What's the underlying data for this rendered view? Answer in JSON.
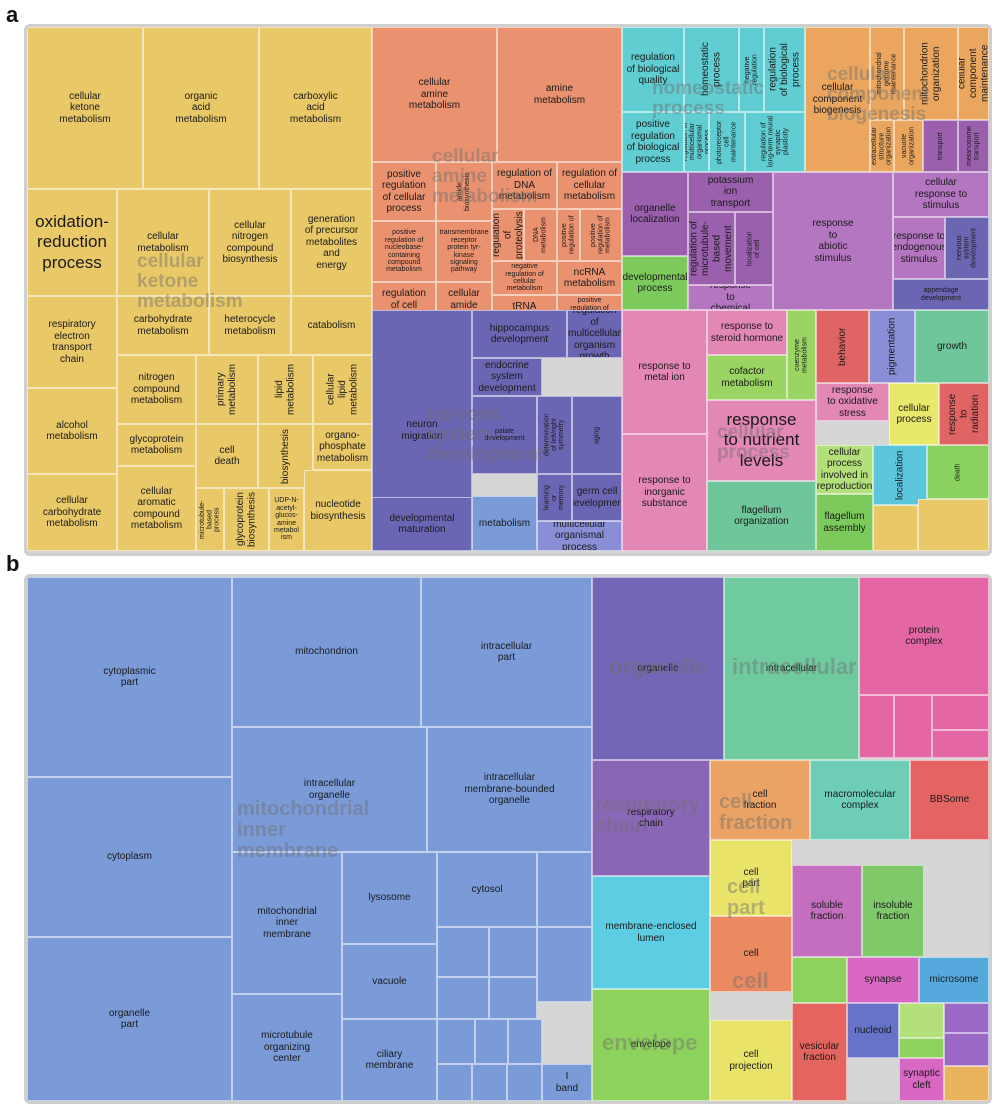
{
  "panels": [
    "a",
    "b"
  ],
  "chart_data": [
    {
      "type": "treemap",
      "panel": "a",
      "group_labels": [
        "cellular ketone metabolism",
        "cellular amine metabolism",
        "homeostatic process",
        "cellular component biogenesis",
        "nervous system development",
        "cellular process"
      ],
      "cells": [
        {
          "label": "cellular\nketone\nmetabolism",
          "color": "#e9c868"
        },
        {
          "label": "organic\nacid\nmetabolism",
          "color": "#e9c868"
        },
        {
          "label": "carboxylic\nacid\nmetabolism",
          "color": "#e9c868"
        },
        {
          "label": "oxidation-\nreduction\nprocess",
          "color": "#e9c868"
        },
        {
          "label": "cellular\nmetabolism",
          "color": "#e9c868"
        },
        {
          "label": "cellular\nnitrogen\ncompound\nbiosynthesis",
          "color": "#e9c868"
        },
        {
          "label": "generation\nof precursor\nmetabolites\nand\nenergy",
          "color": "#e9c868"
        },
        {
          "label": "respiratory\nelectron\ntransport\nchain",
          "color": "#e9c868"
        },
        {
          "label": "carbohydrate\nmetabolism",
          "color": "#e9c868"
        },
        {
          "label": "heterocycle\nmetabolism",
          "color": "#e9c868"
        },
        {
          "label": "catabolism",
          "color": "#e9c868"
        },
        {
          "label": "nitrogen\ncompound\nmetabolism",
          "color": "#e9c868"
        },
        {
          "label": "primary\nmetabolism",
          "color": "#e9c868"
        },
        {
          "label": "lipid\nmetabolism",
          "color": "#e9c868"
        },
        {
          "label": "cellular\nlipid\nmetabolism",
          "color": "#e9c868"
        },
        {
          "label": "alcohol\nmetabolism",
          "color": "#e9c868"
        },
        {
          "label": "glycoprotein\nmetabolism",
          "color": "#e9c868"
        },
        {
          "label": "cell\ndeath",
          "color": "#e9c868"
        },
        {
          "label": "biosynthesis",
          "color": "#e9c868"
        },
        {
          "label": "organo-\nphosphate\nmetabolism",
          "color": "#e9c868"
        },
        {
          "label": "cellular\ncarbohydrate\nmetabolism",
          "color": "#e9c868"
        },
        {
          "label": "cellular\naromatic\ncompound\nmetabolism",
          "color": "#e9c868"
        },
        {
          "label": "microtubule-\nbased\nprocess",
          "color": "#e9c868"
        },
        {
          "label": "glycoprotein\nbiosynthesis",
          "color": "#e9c868"
        },
        {
          "label": "UDP-N-\nacetyl-\nglucos-\namine\nmetabol\nism",
          "color": "#e9c868"
        },
        {
          "label": "nucleotide\nbiosynthesis",
          "color": "#e9c868"
        },
        {
          "label": "cellular\namine\nmetabolism",
          "color": "#ea9270"
        },
        {
          "label": "amine\nmetabolism",
          "color": "#ea9270"
        },
        {
          "label": "positive\nregulation\nof cellular\nprocess",
          "color": "#ea9270"
        },
        {
          "label": "amide\nbiosynthesis",
          "color": "#ea9270"
        },
        {
          "label": "regulation of\nDNA\nmetabolism",
          "color": "#ea9270"
        },
        {
          "label": "regulation of\ncellular\nmetabolism",
          "color": "#ea9270"
        },
        {
          "label": "positive\nregulation of\nnucleobase-\ncontaining\ncompound\nmetabolism",
          "color": "#ea9270"
        },
        {
          "label": "transmembrane\nreceptor\nprotein tyr-\nkinase\nsignaling\npathway",
          "color": "#ea9270"
        },
        {
          "label": "regulation\nof\nproteolysis",
          "color": "#ea9270"
        },
        {
          "label": "DNA\nmetabolism",
          "color": "#ea9270"
        },
        {
          "label": "positive\nregulation of",
          "color": "#ea9270"
        },
        {
          "label": "positive\nregulation of\nmetabolism",
          "color": "#ea9270"
        },
        {
          "label": "negative\nregulation of\ncellular\nmetabolism",
          "color": "#ea9270"
        },
        {
          "label": "ncRNA\nmetabolism",
          "color": "#ea9270"
        },
        {
          "label": "regulation\nof cell\nproliferation",
          "color": "#ea9270"
        },
        {
          "label": "cellular\namide\nmetabolism",
          "color": "#ea9270"
        },
        {
          "label": "tRNA\nmetabolism",
          "color": "#ea9270"
        },
        {
          "label": "positive\nregulation of\nmonooxygenase\nactivity",
          "color": "#ea9270"
        },
        {
          "label": "regulation\nof biological\nquality",
          "color": "#5fcdd2"
        },
        {
          "label": "homeostatic\nprocess",
          "color": "#5fcdd2"
        },
        {
          "label": "negative\nregulation",
          "color": "#5fcdd2"
        },
        {
          "label": "regulation\nof biological\nprocess",
          "color": "#5fcdd2"
        },
        {
          "label": "positive\nregulation\nof biological\nprocess",
          "color": "#5fcdd2"
        },
        {
          "label": "regulation of\nmulticellular\norganismal\nprocess",
          "color": "#5fcdd2"
        },
        {
          "label": "photoreceptor\ncell\nmaintenance",
          "color": "#5fcdd2"
        },
        {
          "label": "regulation of\nlong-term neural\nsynaptic plasticity",
          "color": "#5fcdd2"
        },
        {
          "label": "cellular\ncomponent\nbiogenesis",
          "color": "#eaa65e"
        },
        {
          "label": "mitochondrial\ngenome\nmaintenance",
          "color": "#eaa65e"
        },
        {
          "label": "mitochondrion\norganization",
          "color": "#eaa65e"
        },
        {
          "label": "cellular\ncomponent\nmaintenance",
          "color": "#eaa65e"
        },
        {
          "label": "extracellular\nstructure\norganization",
          "color": "#eaa65e"
        },
        {
          "label": "vacuole\norganization",
          "color": "#eaa65e"
        },
        {
          "label": "transport",
          "color": "#9a60ae"
        },
        {
          "label": "melanosome\ntransport",
          "color": "#9a60ae"
        },
        {
          "label": "organelle\nlocalization",
          "color": "#9a60ae"
        },
        {
          "label": "potassium\nion\ntransport",
          "color": "#9a60ae"
        },
        {
          "label": "regulation of\nmicrotubule-\nbased\nmovement",
          "color": "#9a60ae"
        },
        {
          "label": "localization\nof cell",
          "color": "#9a60ae"
        },
        {
          "label": "developmental\nprocess",
          "color": "#7dca5c"
        },
        {
          "label": "response\nto\nchemical",
          "color": "#b476c1"
        },
        {
          "label": "response\nto\nabiotic\nstimulus",
          "color": "#b476c1"
        },
        {
          "label": "cellular\nresponse to\nstimulus",
          "color": "#b476c1"
        },
        {
          "label": "response to\nendogenous stimulus",
          "color": "#b476c1"
        },
        {
          "label": "nervous\nsystem\ndevelopment",
          "color": "#6b66b3"
        },
        {
          "label": "appendage\ndevelopment",
          "color": "#6b66b3"
        },
        {
          "label": "neuron\nmigration",
          "color": "#6b66b3"
        },
        {
          "label": "hippocampus\ndevelopment",
          "color": "#6b66b3"
        },
        {
          "label": "regulation of\nmulticellular\norganism\ngrowth",
          "color": "#6b66b3"
        },
        {
          "label": "endocrine\nsystem\ndevelopment",
          "color": "#6b66b3"
        },
        {
          "label": "palate\ndevelopment",
          "color": "#6b66b3"
        },
        {
          "label": "determination\nof left/right\nsymmetry",
          "color": "#6b66b3"
        },
        {
          "label": "aging",
          "color": "#6b66b3"
        },
        {
          "label": "learning\nor\nmemory",
          "color": "#6b66b3"
        },
        {
          "label": "germ cell\ndevelopment",
          "color": "#6b66b3"
        },
        {
          "label": "developmental\nmaturation",
          "color": "#6b66b3"
        },
        {
          "label": "metabolism",
          "color": "#7a9ad8"
        },
        {
          "label": "multicellular\norganismal\nprocess",
          "color": "#8a8ed6"
        },
        {
          "label": "response to\nmetal ion",
          "color": "#e387b5"
        },
        {
          "label": "response to\ninorganic\nsubstance",
          "color": "#e387b5"
        },
        {
          "label": "response to\nsteroid hormone",
          "color": "#e387b5"
        },
        {
          "label": "cofactor\nmetabolism",
          "color": "#9ad462"
        },
        {
          "label": "coenzyme\nmetabolism",
          "color": "#9ad462"
        },
        {
          "label": "behavior",
          "color": "#e06464"
        },
        {
          "label": "pigmentation",
          "color": "#8a8ed6"
        },
        {
          "label": "growth",
          "color": "#6fc69a"
        },
        {
          "label": "response\nto oxidative\nstress",
          "color": "#e387b5"
        },
        {
          "label": "cellular\nprocess",
          "color": "#e8e86a"
        },
        {
          "label": "response\nto\nradiation",
          "color": "#e06464"
        },
        {
          "label": "response\nto nutrient\nlevels",
          "color": "#e387b5"
        },
        {
          "label": "cellular\nprocess\ninvolved in\nreproduction",
          "color": "#b3e07a"
        },
        {
          "label": "localization",
          "color": "#5cc6df"
        },
        {
          "label": "death",
          "color": "#8ad160"
        },
        {
          "label": "flagellum\norganization",
          "color": "#6fc69a"
        },
        {
          "label": "flagellum\nassembly",
          "color": "#7dca5c"
        }
      ]
    },
    {
      "type": "treemap",
      "panel": "b",
      "group_labels": [
        "mitochondrial inner membrane",
        "organelle",
        "intracellular",
        "respiratory chain",
        "cell fraction",
        "cell part",
        "cell",
        "envelope"
      ],
      "cells": [
        {
          "label": "cytoplasmic\npart",
          "color": "#7a9ad8"
        },
        {
          "label": "cytoplasm",
          "color": "#7a9ad8"
        },
        {
          "label": "organelle\npart",
          "color": "#7a9ad8"
        },
        {
          "label": "mitochondrion",
          "color": "#7a9ad8"
        },
        {
          "label": "intracellular\npart",
          "color": "#7a9ad8"
        },
        {
          "label": "intracellular\norganelle",
          "color": "#7a9ad8"
        },
        {
          "label": "intracellular\nmembrane-bounded\norganelle",
          "color": "#7a9ad8"
        },
        {
          "label": "mitochondrial\ninner\nmembrane",
          "color": "#7a9ad8"
        },
        {
          "label": "lysosome",
          "color": "#7a9ad8"
        },
        {
          "label": "cytosol",
          "color": "#7a9ad8"
        },
        {
          "label": "vacuole",
          "color": "#7a9ad8"
        },
        {
          "label": "microtubule\norganizing\ncenter",
          "color": "#7a9ad8"
        },
        {
          "label": "ciliary\nmembrane",
          "color": "#7a9ad8"
        },
        {
          "label": "I\nband",
          "color": "#7a9ad8"
        },
        {
          "label": "organelle",
          "color": "#7465b6"
        },
        {
          "label": "intracellular",
          "color": "#6fcb9f"
        },
        {
          "label": "protein\ncomplex",
          "color": "#e466a4"
        },
        {
          "label": "respiratory\nchain",
          "color": "#8a66b6"
        },
        {
          "label": "cell\nfraction",
          "color": "#eaa265"
        },
        {
          "label": "macromolecular\ncomplex",
          "color": "#6dcdb7"
        },
        {
          "label": "BBSome",
          "color": "#e46464"
        },
        {
          "label": "membrane-enclosed\nlumen",
          "color": "#5ccde2"
        },
        {
          "label": "cell\npart",
          "color": "#eae36a"
        },
        {
          "label": "soluble\nfraction",
          "color": "#c46ebf"
        },
        {
          "label": "insoluble\nfraction",
          "color": "#7fc96b"
        },
        {
          "label": "cell",
          "color": "#eb8a60"
        },
        {
          "label": "synapse",
          "color": "#d967c4"
        },
        {
          "label": "microsome",
          "color": "#55a9dc"
        },
        {
          "label": "envelope",
          "color": "#8ed25e"
        },
        {
          "label": "cell\nprojection",
          "color": "#eae36a"
        },
        {
          "label": "vesicular\nfraction",
          "color": "#e4645f"
        },
        {
          "label": "nucleoid",
          "color": "#6673c8"
        },
        {
          "label": "synaptic\ncleft",
          "color": "#d967c4"
        }
      ]
    }
  ]
}
